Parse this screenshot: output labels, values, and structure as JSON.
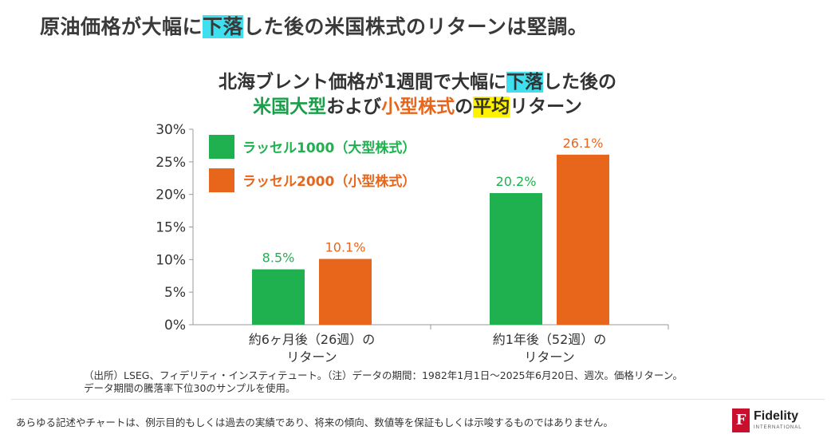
{
  "headline": {
    "part1": "原油価格が大幅に",
    "part2": "下落",
    "part3": "した後の米国株式のリターンは堅調。"
  },
  "chart_title": {
    "line1_a": "北海ブレント価格が1週間で大幅に",
    "line1_b": "下落",
    "line1_c": "した後の",
    "line2_a": "米国大型",
    "line2_b": "および",
    "line2_c": "小型株式",
    "line2_d": "の",
    "line2_e": "平均",
    "line2_f": "リターン"
  },
  "chart_data": {
    "type": "bar",
    "categories": [
      [
        "約6ヶ月後（26週）の",
        "リターン"
      ],
      [
        "約1年後（52週）の",
        "リターン"
      ]
    ],
    "series": [
      {
        "name": "ラッセル1000（大型株式）",
        "color": "#1fb14f",
        "values": [
          8.5,
          20.2
        ],
        "labels": [
          "8.5%",
          "20.2%"
        ]
      },
      {
        "name": "ラッセル2000（小型株式）",
        "color": "#e8661c",
        "values": [
          10.1,
          26.1
        ],
        "labels": [
          "10.1%",
          "26.1%"
        ]
      }
    ],
    "ylim": [
      0,
      30
    ],
    "yticks": [
      0,
      5,
      10,
      15,
      20,
      25,
      30
    ],
    "ytick_labels": [
      "0%",
      "5%",
      "10%",
      "15%",
      "20%",
      "25%",
      "30%"
    ],
    "legend_position": "top-left"
  },
  "footer": {
    "source_line1": "（出所）LSEG、フィデリティ・インスティテュート。（注）データの期間：1982年1月1日～2025年6月20日、週次。価格リターン。",
    "source_line2": "データ期間の騰落率下位30のサンプルを使用。",
    "disclaimer": "あらゆる記述やチャートは、例示目的もしくは過去の実績であり、将来の傾向、数値等を保証もしくは示唆するものではありません。"
  },
  "brand": {
    "mark": "F",
    "name": "Fidelity",
    "sub": "INTERNATIONAL",
    "color": "#c8102e"
  }
}
